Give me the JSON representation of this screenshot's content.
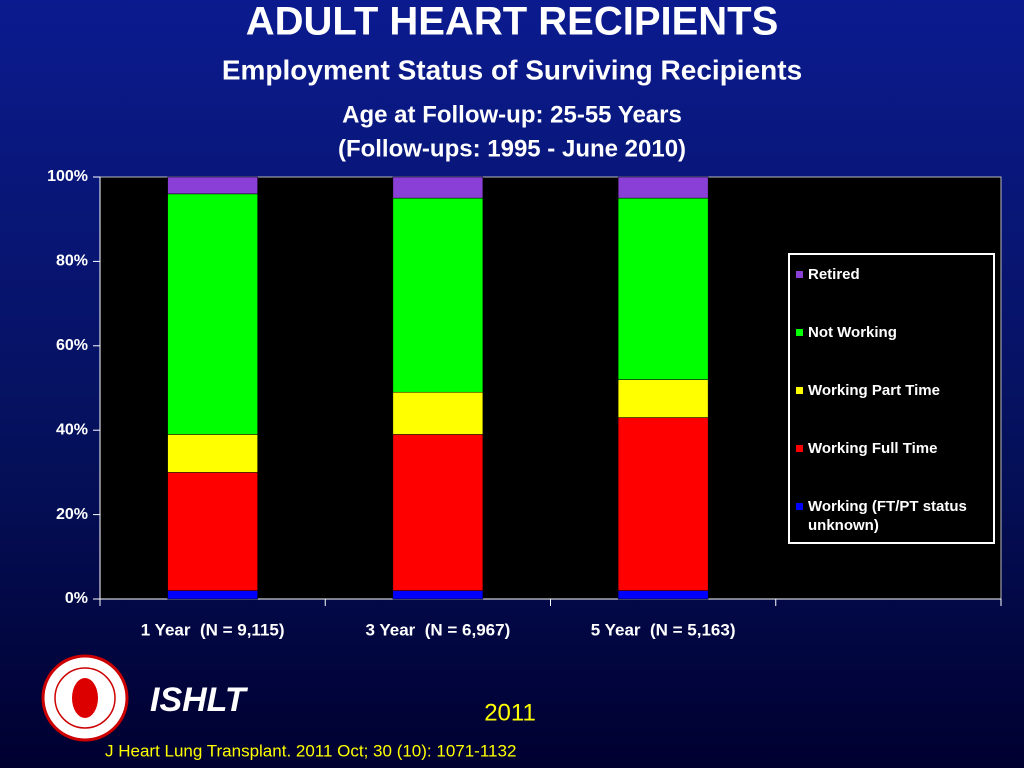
{
  "chart_data": {
    "type": "stacked_bar",
    "title": "ADULT HEART RECIPIENTS",
    "subtitle": "Employment Status of Surviving Recipients",
    "subtitle_lines": [
      "Age at Follow-up: 25-55 Years",
      "(Follow-ups: 1995 - June 2010)"
    ],
    "categories": [
      "1 Year  (N = 9,115)",
      "3 Year  (N = 6,967)",
      "5 Year  (N = 5,163)",
      null
    ],
    "series": [
      {
        "name": "Working (FT/PT status unknown)",
        "color": "#0000ff",
        "values": [
          2,
          2,
          2,
          null
        ]
      },
      {
        "name": "Working Full Time",
        "color": "#ff0000",
        "values": [
          28,
          37,
          41,
          null
        ]
      },
      {
        "name": "Working Part Time",
        "color": "#ffff00",
        "values": [
          9,
          10,
          9,
          null
        ]
      },
      {
        "name": "Not Working",
        "color": "#00ff00",
        "values": [
          57,
          46,
          43,
          null
        ]
      },
      {
        "name": "Retired",
        "color": "#8a3fd6",
        "values": [
          4,
          5,
          5,
          null
        ]
      }
    ],
    "ylim": [
      0,
      100
    ],
    "yticks": [
      {
        "value": 0,
        "label": "0%"
      },
      {
        "value": 20,
        "label": "20%"
      },
      {
        "value": 40,
        "label": "40%"
      },
      {
        "value": 60,
        "label": "60%"
      },
      {
        "value": 80,
        "label": "80%"
      },
      {
        "value": 100,
        "label": "100%"
      }
    ],
    "grid": false,
    "legend": "right"
  },
  "footer": {
    "brand": "ISHLT",
    "year": "2011",
    "citation": "J Heart Lung Transplant. 2011 Oct; 30 (10): 1071-1132"
  }
}
